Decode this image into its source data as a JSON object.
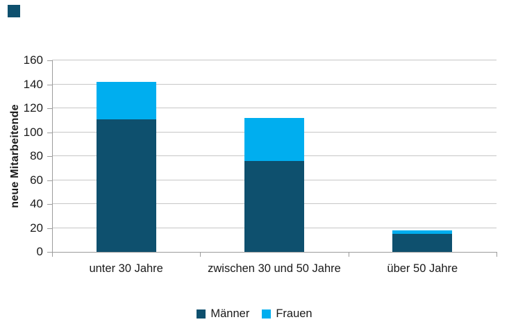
{
  "decorations": {
    "corner_square_color": "#0E506E"
  },
  "chart_data": {
    "type": "bar",
    "stacked": true,
    "title": "",
    "xlabel": "",
    "ylabel": "neue Mitarbeitende",
    "categories": [
      "unter 30 Jahre",
      "zwischen 30 und 50 Jahre",
      "über 50 Jahre"
    ],
    "series": [
      {
        "name": "Männer",
        "color": "#0E506E",
        "values": [
          111,
          76,
          15
        ]
      },
      {
        "name": "Frauen",
        "color": "#00AEEF",
        "values": [
          31,
          36,
          3
        ]
      }
    ],
    "totals": [
      142,
      112,
      18
    ],
    "ylim": [
      0,
      160
    ],
    "yticks": [
      0,
      20,
      40,
      60,
      80,
      100,
      120,
      140,
      160
    ],
    "grid": "horizontal",
    "gridline_color": "#C6C6C6",
    "axis_color": "#9B9B9B",
    "text_color": "#1A1A1A",
    "legend_position": "bottom-center"
  }
}
